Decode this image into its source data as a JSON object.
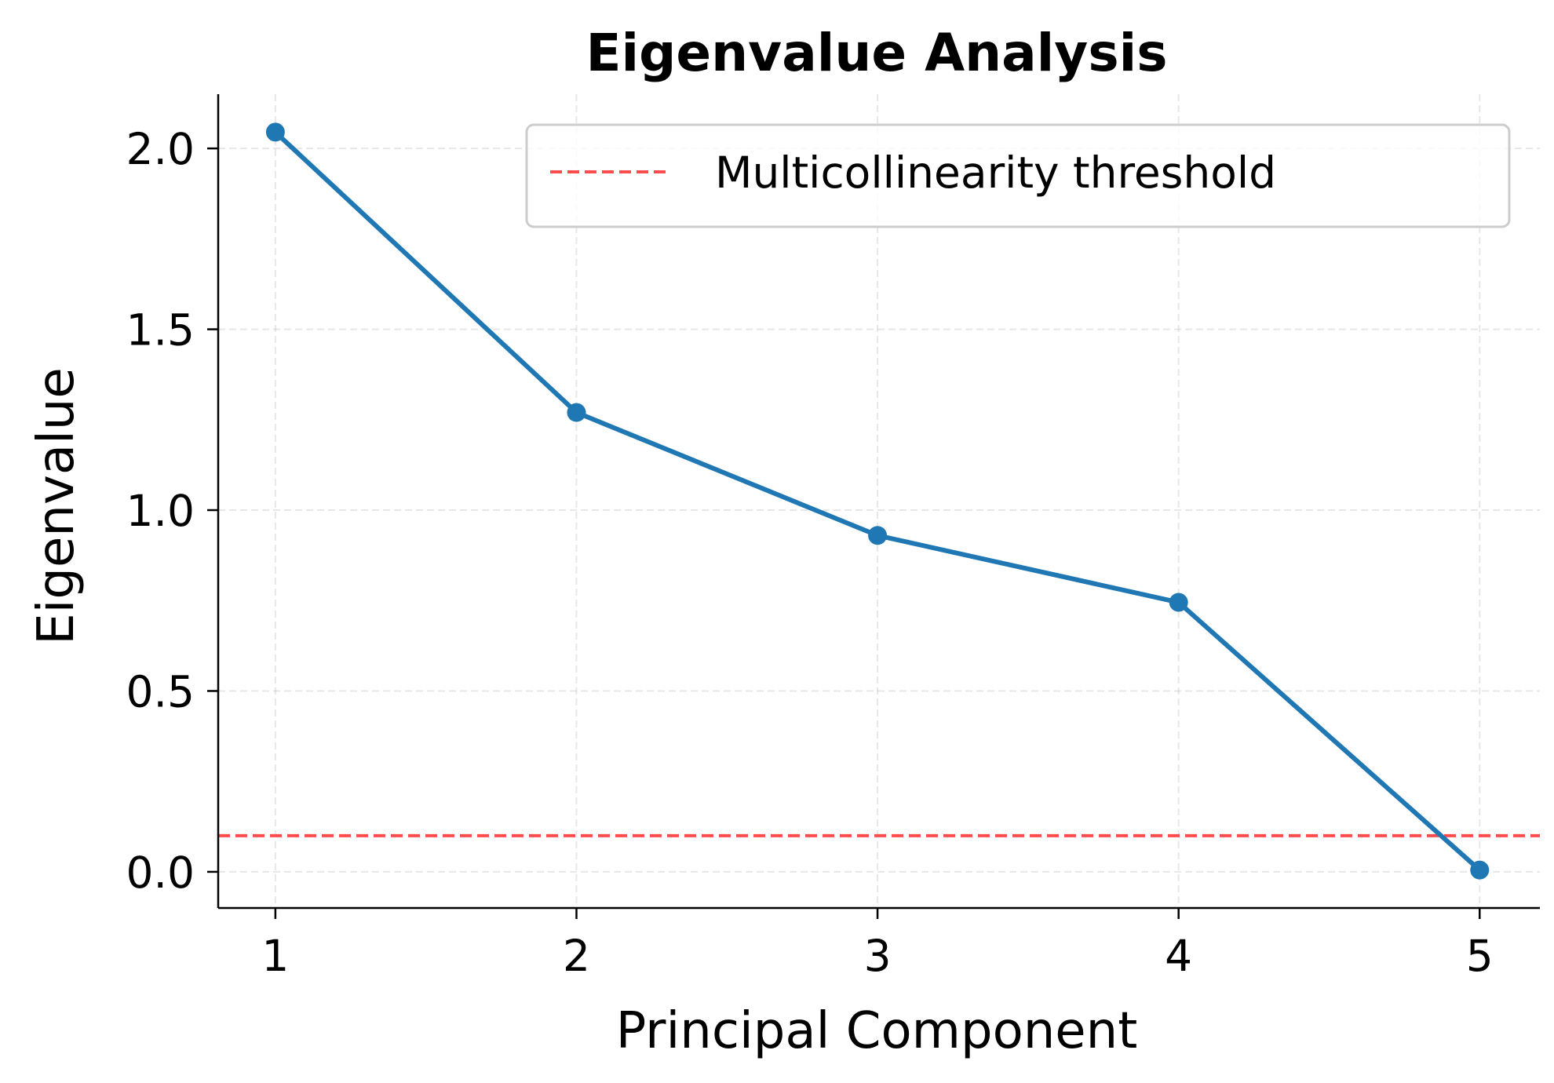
{
  "chart_data": {
    "type": "line",
    "title": "Eigenvalue Analysis",
    "xlabel": "Principal Component",
    "ylabel": "Eigenvalue",
    "x": [
      1,
      2,
      3,
      4,
      5
    ],
    "x_tick_labels": [
      "1",
      "2",
      "3",
      "4",
      "5"
    ],
    "y_ticks": [
      0.0,
      0.5,
      1.0,
      1.5,
      2.0
    ],
    "y_tick_labels": [
      "0.0",
      "0.5",
      "1.0",
      "1.5",
      "2.0"
    ],
    "xlim": [
      0.81,
      5.2
    ],
    "ylim": [
      -0.1,
      2.15
    ],
    "grid": true,
    "series": [
      {
        "values": [
          2.045,
          1.27,
          0.93,
          0.745,
          0.005
        ],
        "color": "#1f77b4",
        "marker": "circle"
      }
    ],
    "reference_lines": [
      {
        "name": "Multicollinearity threshold",
        "y": 0.1,
        "color": "#ff4d4d",
        "style": "dashed"
      }
    ],
    "legend": {
      "position": "top-right",
      "entries": [
        "Multicollinearity threshold"
      ]
    }
  }
}
